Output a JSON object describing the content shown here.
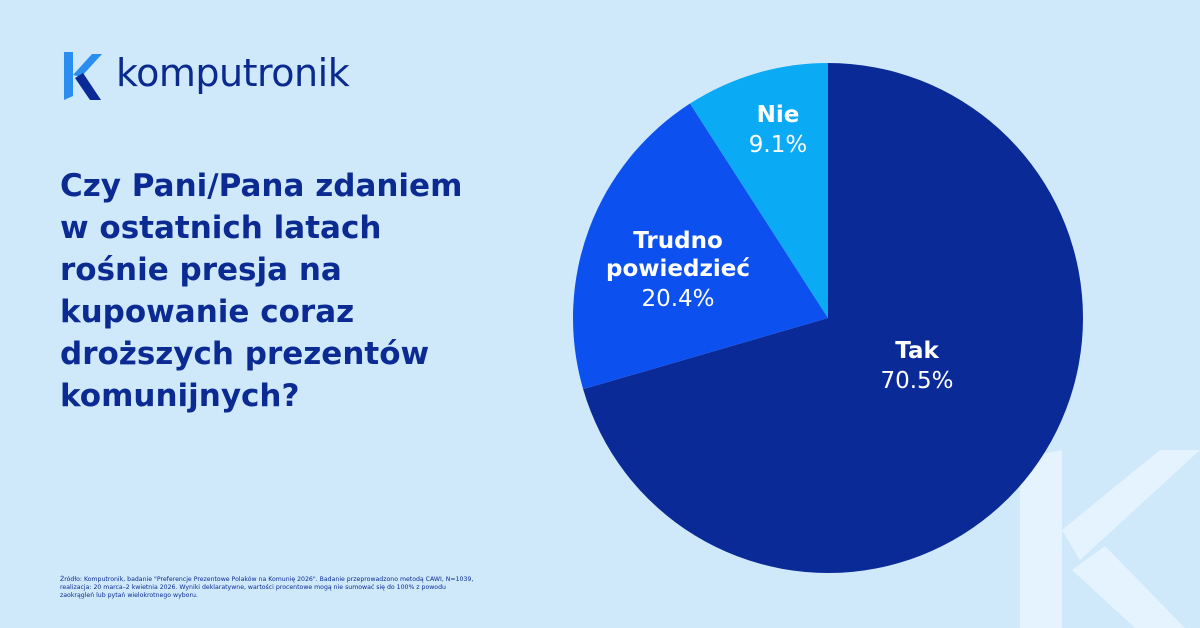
{
  "brand": {
    "name": "komputronik"
  },
  "question": "Czy Pani/Pana zdaniem w ostatnich latach rośnie presja na kupowanie coraz droższych prezentów komunijnych?",
  "source_note": "Źródło: Komputronik, badanie \"Preferencje Prezentowe Polaków na Komunię 2026\". Badanie przeprowadzono metodą CAWI, N=1039, realizacja: 20 marca–2 kwietnia 2026. Wyniki deklaratywne, wartości procentowe mogą nie sumować się do 100% z powodu zaokrągleń lub pytań wielokrotnego wyboru.",
  "colors": {
    "background": "#cfe9fb",
    "brand": "#0b2b93",
    "tak": "#0a2a97",
    "trudno": "#0d50f0",
    "nie": "#0aaaf5"
  },
  "chart_data": {
    "type": "pie",
    "title": "",
    "start": "12 o'clock",
    "direction": "clockwise",
    "slices": [
      {
        "label": "Tak",
        "label_lines": [
          "Tak"
        ],
        "value": 70.5,
        "value_label": "70.5%",
        "color": "#0a2a97"
      },
      {
        "label": "Trudno powiedzieć",
        "label_lines": [
          "Trudno",
          "powiedzieć"
        ],
        "value": 20.4,
        "value_label": "20.4%",
        "color": "#0d50f0"
      },
      {
        "label": "Nie",
        "label_lines": [
          "Nie"
        ],
        "value": 9.1,
        "value_label": "9.1%",
        "color": "#0aaaf5"
      }
    ]
  }
}
